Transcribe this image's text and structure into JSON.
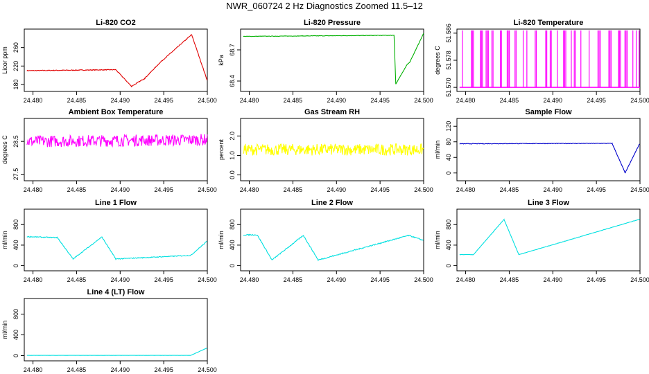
{
  "figure": {
    "title": "NWR_060724  2 Hz Diagnostics Zoomed 11.5–12"
  },
  "chart_data": [
    {
      "type": "line",
      "title": "Li-820 CO2",
      "ylabel": "Licor ppm",
      "color": "#e00000",
      "xlim": [
        24.479,
        24.5
      ],
      "ylim": [
        165,
        300
      ],
      "xticks": [
        "24.480",
        "24.485",
        "24.490",
        "24.495",
        "24.500"
      ],
      "xtick_values": [
        24.48,
        24.485,
        24.49,
        24.495,
        24.5
      ],
      "yticks": [
        "180",
        "220",
        "260"
      ],
      "ytick_values": [
        180,
        220,
        260
      ],
      "noise": 0.8,
      "series": [
        {
          "x": [
            24.4793,
            24.4895,
            24.4895,
            24.4913,
            24.4913,
            24.4928,
            24.4928,
            24.4946,
            24.4946,
            24.4982,
            24.4982,
            24.5
          ],
          "y": [
            210,
            212,
            212,
            176,
            176,
            193,
            193,
            228,
            228,
            288,
            288,
            188
          ]
        }
      ]
    },
    {
      "type": "line",
      "title": "Li-820 Pressure",
      "ylabel": "kPa",
      "color": "#00b000",
      "xlim": [
        24.479,
        24.5
      ],
      "ylim": [
        68.3,
        68.9
      ],
      "xticks": [
        "24.480",
        "24.485",
        "24.490",
        "24.495",
        "24.500"
      ],
      "xtick_values": [
        24.48,
        24.485,
        24.49,
        24.495,
        24.5
      ],
      "yticks": [
        "68.4",
        "68.7"
      ],
      "ytick_values": [
        68.4,
        68.7
      ],
      "noise": 0.002,
      "series": [
        {
          "x": [
            24.4793,
            24.4966,
            24.4966,
            24.4968,
            24.4968,
            24.4981,
            24.4981,
            24.4984,
            24.4984,
            24.5
          ],
          "y": [
            68.83,
            68.84,
            68.84,
            68.37,
            68.37,
            68.56,
            68.56,
            68.58,
            68.58,
            68.86
          ]
        }
      ]
    },
    {
      "type": "line",
      "title": "Li-820 Temperature",
      "ylabel": "degrees C",
      "color": "#ff00ff",
      "xlim": [
        24.479,
        24.5
      ],
      "ylim": [
        51.5688,
        51.5872
      ],
      "xticks": [
        "24.480",
        "24.485",
        "24.490",
        "24.495",
        "24.500"
      ],
      "xtick_values": [
        24.48,
        24.485,
        24.49,
        24.495,
        24.5
      ],
      "yticks": [
        "51.570",
        "51.578",
        "51.586"
      ],
      "ytick_values": [
        51.57,
        51.578,
        51.586
      ],
      "spikes": {
        "base": 51.57,
        "top": 51.5868
      },
      "series": [
        {
          "x": [
            24.4793,
            24.5
          ],
          "y": [
            51.57,
            51.57
          ]
        }
      ]
    },
    {
      "type": "line",
      "title": "Ambient Box Temperature",
      "ylabel": "degrees C",
      "color": "#ff00ff",
      "xlim": [
        24.479,
        24.5
      ],
      "ylim": [
        27.3,
        29.2
      ],
      "xticks": [
        "24.480",
        "24.485",
        "24.490",
        "24.495",
        "24.500"
      ],
      "xtick_values": [
        24.48,
        24.485,
        24.49,
        24.495,
        24.5
      ],
      "yticks": [
        "27.5",
        "28.5"
      ],
      "ytick_values": [
        27.5,
        28.5
      ],
      "noise": 0.18,
      "series": [
        {
          "x": [
            24.4793,
            24.5
          ],
          "y": [
            28.5,
            28.55
          ]
        }
      ]
    },
    {
      "type": "line",
      "title": "Gas Stream RH",
      "ylabel": "percent",
      "color": "#ffff00",
      "xlim": [
        24.479,
        24.5
      ],
      "ylim": [
        -0.3,
        2.9
      ],
      "xticks": [
        "24.480",
        "24.485",
        "24.490",
        "24.495",
        "24.500"
      ],
      "xtick_values": [
        24.48,
        24.485,
        24.49,
        24.495,
        24.5
      ],
      "yticks": [
        "0.0",
        "1.0",
        "2.0"
      ],
      "ytick_values": [
        0,
        1,
        2
      ],
      "noise": 0.3,
      "series": [
        {
          "x": [
            24.4793,
            24.5
          ],
          "y": [
            1.3,
            1.3
          ]
        }
      ]
    },
    {
      "type": "line",
      "title": "Sample Flow",
      "ylabel": "ml/min",
      "color": "#0000cc",
      "xlim": [
        24.479,
        24.5
      ],
      "ylim": [
        -20,
        140
      ],
      "xticks": [
        "24.480",
        "24.485",
        "24.490",
        "24.495",
        "24.500"
      ],
      "xtick_values": [
        24.48,
        24.485,
        24.49,
        24.495,
        24.5
      ],
      "yticks": [
        "0",
        "40",
        "80",
        "120"
      ],
      "ytick_values": [
        0,
        40,
        80,
        120
      ],
      "noise": 0.7,
      "series": [
        {
          "x": [
            24.4793,
            24.4968,
            24.4968,
            24.4983,
            24.4983,
            24.5
          ],
          "y": [
            75,
            76,
            76,
            0,
            0,
            77
          ]
        }
      ]
    },
    {
      "type": "line",
      "title": "Line 1 Flow",
      "ylabel": "ml/min",
      "color": "#00e0e0",
      "xlim": [
        24.479,
        24.5
      ],
      "ylim": [
        -100,
        1100
      ],
      "xticks": [
        "24.480",
        "24.485",
        "24.490",
        "24.495",
        "24.500"
      ],
      "xtick_values": [
        24.48,
        24.485,
        24.49,
        24.495,
        24.5
      ],
      "yticks": [
        "0",
        "400",
        "800"
      ],
      "ytick_values": [
        0,
        400,
        800
      ],
      "noise": 8,
      "series": [
        {
          "x": [
            24.4793,
            24.4828,
            24.4828,
            24.4846,
            24.4846,
            24.4879,
            24.4879,
            24.4895,
            24.4895,
            24.4981,
            24.4981,
            24.5
          ],
          "y": [
            565,
            545,
            545,
            130,
            130,
            560,
            560,
            130,
            130,
            200,
            200,
            480
          ]
        }
      ]
    },
    {
      "type": "line",
      "title": "Line 2 Flow",
      "ylabel": "ml/min",
      "color": "#00e0e0",
      "xlim": [
        24.479,
        24.5
      ],
      "ylim": [
        -100,
        1100
      ],
      "xticks": [
        "24.480",
        "24.485",
        "24.490",
        "24.495",
        "24.500"
      ],
      "xtick_values": [
        24.48,
        24.485,
        24.49,
        24.495,
        24.5
      ],
      "yticks": [
        "0",
        "400",
        "800"
      ],
      "ytick_values": [
        0,
        400,
        800
      ],
      "noise": 10,
      "series": [
        {
          "x": [
            24.4793,
            24.4809,
            24.4809,
            24.4826,
            24.4826,
            24.4862,
            24.4862,
            24.4879,
            24.4879,
            24.4983,
            24.4983,
            24.5
          ],
          "y": [
            600,
            600,
            600,
            110,
            110,
            590,
            590,
            110,
            110,
            590,
            590,
            490
          ]
        }
      ]
    },
    {
      "type": "line",
      "title": "Line 3 Flow",
      "ylabel": "ml/min",
      "color": "#00e0e0",
      "xlim": [
        24.479,
        24.5
      ],
      "ylim": [
        -100,
        1100
      ],
      "xticks": [
        "24.480",
        "24.485",
        "24.490",
        "24.495",
        "24.500"
      ],
      "xtick_values": [
        24.48,
        24.485,
        24.49,
        24.495,
        24.5
      ],
      "yticks": [
        "0",
        "400",
        "800"
      ],
      "ytick_values": [
        0,
        400,
        800
      ],
      "noise": 3,
      "series": [
        {
          "x": [
            24.4793,
            24.4809,
            24.4809,
            24.4844,
            24.4844,
            24.4861,
            24.4861,
            24.5
          ],
          "y": [
            215,
            215,
            215,
            900,
            900,
            215,
            215,
            905
          ]
        }
      ]
    },
    {
      "type": "line",
      "title": "Line 4 (LT) Flow",
      "ylabel": "ml/min",
      "color": "#00e0e0",
      "xlim": [
        24.479,
        24.5
      ],
      "ylim": [
        -100,
        1100
      ],
      "xticks": [
        "24.480",
        "24.485",
        "24.490",
        "24.495",
        "24.500"
      ],
      "xtick_values": [
        24.48,
        24.485,
        24.49,
        24.495,
        24.5
      ],
      "yticks": [
        "0",
        "400",
        "800"
      ],
      "ytick_values": [
        0,
        400,
        800
      ],
      "noise": 1,
      "series": [
        {
          "x": [
            24.4793,
            24.4981,
            24.4981,
            24.5
          ],
          "y": [
            5,
            5,
            5,
            150
          ]
        }
      ]
    }
  ]
}
